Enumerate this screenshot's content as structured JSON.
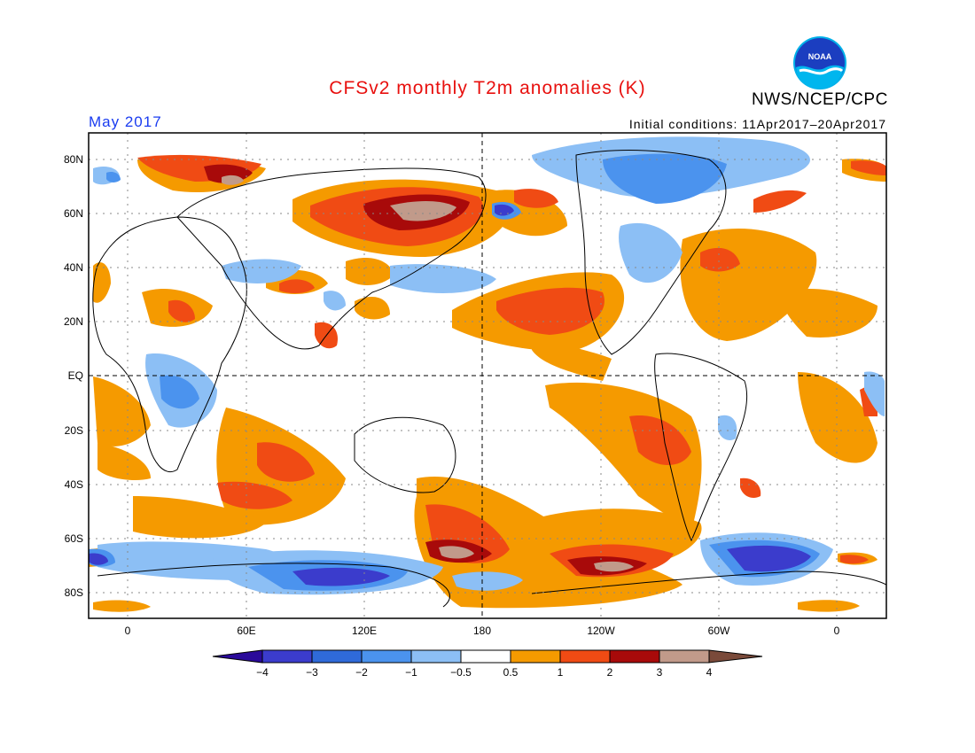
{
  "header": {
    "title": "CFSv2 monthly T2m anomalies (K)",
    "agency": "NWS/NCEP/CPC",
    "logo_text": "NOAA",
    "month_label": "May 2017",
    "initial_conditions": "Initial conditions: 11Apr2017–20Apr2017"
  },
  "axes": {
    "lat_labels": [
      "80N",
      "60N",
      "40N",
      "20N",
      "EQ",
      "20S",
      "40S",
      "60S",
      "80S"
    ],
    "lon_labels": [
      "0",
      "60E",
      "120E",
      "180",
      "120W",
      "60W",
      "0"
    ]
  },
  "colorbar": {
    "labels": [
      "−4",
      "−3",
      "−2",
      "−1",
      "−0.5",
      "0.5",
      "1",
      "2",
      "3",
      "4"
    ],
    "colors": [
      "#2a0a9a",
      "#3b3ccc",
      "#2f6ad9",
      "#4b93ee",
      "#8cbff5",
      "#ffffff",
      "#f59a00",
      "#f04b14",
      "#a80a0a",
      "#c19a8a",
      "#7a4a3a"
    ]
  },
  "colors": {
    "title": "#e8100e",
    "month": "#1a3cf0",
    "warm1": "#f59a00",
    "warm2": "#f04b14",
    "warm3": "#a80a0a",
    "warm4": "#c19a8a",
    "cool1": "#8cbff5",
    "cool2": "#4b93ee",
    "cool3": "#2f6ad9",
    "cool4": "#3b3ccc"
  }
}
